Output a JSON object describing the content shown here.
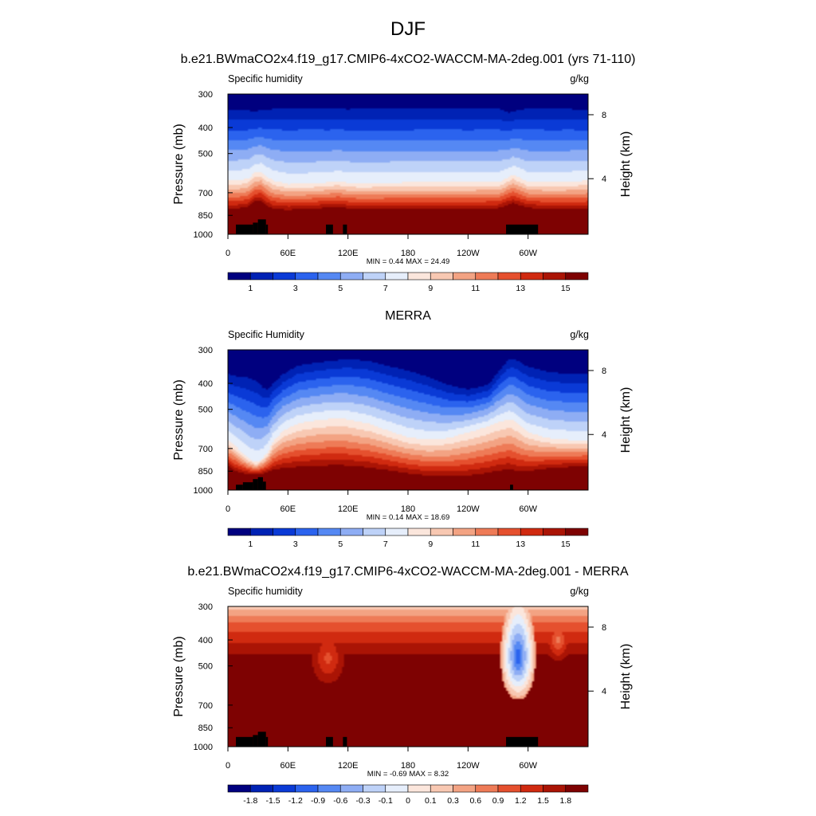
{
  "title": "DJF",
  "palette": {
    "moisture": [
      "#00007f",
      "#0022b4",
      "#0a3ad6",
      "#2b63ee",
      "#5588f3",
      "#8eadf4",
      "#bed2f8",
      "#e6eefb",
      "#fbe6dc",
      "#f8c8b2",
      "#f3a383",
      "#ee7b57",
      "#e5502e",
      "#d02a10",
      "#aa1405",
      "#7e0202"
    ],
    "diff": [
      "#00007f",
      "#0022b4",
      "#0a3ad6",
      "#2b63ee",
      "#5588f3",
      "#8eadf4",
      "#bed2f8",
      "#e6eefb",
      "#fbe6dc",
      "#f8c8b2",
      "#f3a383",
      "#ee7b57",
      "#e5502e",
      "#d02a10",
      "#aa1405",
      "#7e0202"
    ],
    "terrain": "#000000"
  },
  "panels": [
    {
      "header": "b.e21.BWmaCO2x4.f19_g17.CMIP6-4xCO2-WACCM-MA-2deg.001 (yrs 71-110)",
      "left_label": "Specific humidity",
      "right_label": "g/kg",
      "ylabel": "Pressure (mb)",
      "y2label": "Height (km)",
      "stats": "MIN =   0.44  MAX =  24.49",
      "colorbar_labels": [
        "1",
        "3",
        "5",
        "7",
        "9",
        "11",
        "13",
        "15"
      ]
    },
    {
      "header": "MERRA",
      "left_label": "Specific Humidity",
      "right_label": "g/kg",
      "ylabel": "Pressure (mb)",
      "y2label": "Height (km)",
      "stats": "MIN =   0.14  MAX =  18.69",
      "colorbar_labels": [
        "1",
        "3",
        "5",
        "7",
        "9",
        "11",
        "13",
        "15"
      ]
    },
    {
      "header": "b.e21.BWmaCO2x4.f19_g17.CMIP6-4xCO2-WACCM-MA-2deg.001 - MERRA",
      "left_label": "Specific humidity",
      "right_label": "g/kg",
      "ylabel": "Pressure (mb)",
      "y2label": "Height (km)",
      "stats": "MIN =  -0.69  MAX =   8.32",
      "colorbar_labels": [
        "-1.8",
        "-1.5",
        "-1.2",
        "-0.9",
        "-0.6",
        "-0.3",
        "-0.1",
        "0",
        "0.1",
        "0.3",
        "0.6",
        "0.9",
        "1.2",
        "1.5",
        "1.8"
      ]
    }
  ],
  "chart_data": [
    {
      "type": "heatmap",
      "title": "b.e21.BWmaCO2x4.f19_g17.CMIP6-4xCO2-WACCM-MA-2deg.001 (yrs 71-110)",
      "variable": "Specific humidity",
      "units": "g/kg",
      "ylabel": "Pressure (mb)",
      "y2label": "Height (km)",
      "x_ticks": [
        "0",
        "60E",
        "120E",
        "180",
        "120W",
        "60W"
      ],
      "y_ticks": [
        "300",
        "400",
        "500",
        "700",
        "850",
        "1000"
      ],
      "y2_ticks": [
        "8",
        "4"
      ],
      "ylim": [
        1000,
        300
      ],
      "xlim": [
        0,
        360
      ],
      "min": 0.44,
      "max": 24.49,
      "levels": [
        1,
        3,
        5,
        7,
        9,
        11,
        13,
        15
      ],
      "profile": {
        "lon": [
          0,
          10,
          20,
          27,
          33,
          38,
          45,
          60,
          80,
          100,
          110,
          120,
          130,
          150,
          180,
          210,
          240,
          270,
          280,
          285,
          290,
          300,
          320,
          340,
          360
        ],
        "p_top": [
          315,
          315,
          318,
          322,
          320,
          318,
          312,
          310,
          308,
          312,
          310,
          313,
          310,
          312,
          312,
          310,
          312,
          310,
          325,
          322,
          318,
          310,
          312,
          312,
          315
        ],
        "p_mid": [
          630,
          630,
          620,
          590,
          585,
          605,
          630,
          650,
          648,
          640,
          635,
          642,
          646,
          645,
          640,
          640,
          640,
          640,
          615,
          600,
          612,
          640,
          640,
          638,
          630
        ],
        "p_low": [
          810,
          806,
          795,
          760,
          755,
          785,
          808,
          815,
          808,
          800,
          795,
          805,
          808,
          808,
          808,
          808,
          808,
          805,
          780,
          770,
          780,
          800,
          810,
          812,
          810
        ]
      },
      "terrain": [
        [
          8,
          25,
          920
        ],
        [
          25,
          30,
          905
        ],
        [
          30,
          38,
          880
        ],
        [
          38,
          40,
          920
        ],
        [
          98,
          105,
          920
        ],
        [
          115,
          119,
          920
        ],
        [
          278,
          310,
          920
        ]
      ]
    },
    {
      "type": "heatmap",
      "title": "MERRA",
      "variable": "Specific Humidity",
      "units": "g/kg",
      "ylabel": "Pressure (mb)",
      "y2label": "Height (km)",
      "x_ticks": [
        "0",
        "60E",
        "120E",
        "180",
        "120W",
        "60W"
      ],
      "y_ticks": [
        "300",
        "400",
        "500",
        "700",
        "850",
        "1000"
      ],
      "y2_ticks": [
        "8",
        "4"
      ],
      "ylim": [
        1000,
        300
      ],
      "xlim": [
        0,
        360
      ],
      "min": 0.14,
      "max": 18.69,
      "levels": [
        1,
        3,
        5,
        7,
        9,
        11,
        13,
        15
      ],
      "profile": {
        "lon": [
          0,
          10,
          20,
          28,
          35,
          40,
          45,
          55,
          70,
          90,
          110,
          120,
          140,
          160,
          180,
          200,
          220,
          240,
          260,
          270,
          280,
          285,
          290,
          300,
          320,
          340,
          360
        ],
        "p_top": [
          340,
          345,
          345,
          355,
          380,
          390,
          372,
          345,
          320,
          312,
          305,
          302,
          305,
          318,
          330,
          350,
          380,
          400,
          385,
          340,
          305,
          300,
          305,
          320,
          335,
          340,
          340
        ],
        "p_mid": [
          650,
          700,
          760,
          790,
          760,
          720,
          660,
          600,
          565,
          548,
          540,
          545,
          565,
          600,
          635,
          650,
          640,
          610,
          580,
          560,
          545,
          550,
          570,
          610,
          640,
          650,
          650
        ],
        "p_low": [
          820,
          860,
          875,
          880,
          870,
          860,
          845,
          835,
          826,
          818,
          815,
          818,
          830,
          850,
          872,
          890,
          895,
          890,
          870,
          855,
          845,
          850,
          860,
          855,
          835,
          825,
          820
        ]
      },
      "terrain": [
        [
          8,
          15,
          955
        ],
        [
          15,
          25,
          935
        ],
        [
          25,
          30,
          910
        ],
        [
          30,
          35,
          895
        ],
        [
          35,
          38,
          930
        ],
        [
          282,
          285,
          955
        ]
      ]
    },
    {
      "type": "heatmap",
      "title": "b.e21.BWmaCO2x4.f19_g17.CMIP6-4xCO2-WACCM-MA-2deg.001 - MERRA",
      "variable": "Specific humidity",
      "units": "g/kg",
      "ylabel": "Pressure (mb)",
      "y2label": "Height (km)",
      "x_ticks": [
        "0",
        "60E",
        "120E",
        "180",
        "120W",
        "60W"
      ],
      "y_ticks": [
        "300",
        "400",
        "500",
        "700",
        "850",
        "1000"
      ],
      "y2_ticks": [
        "8",
        "4"
      ],
      "ylim": [
        1000,
        300
      ],
      "xlim": [
        0,
        360
      ],
      "min": -0.69,
      "max": 8.32,
      "levels": [
        -1.8,
        -1.5,
        -1.2,
        -0.9,
        -0.6,
        -0.3,
        -0.1,
        0,
        0.1,
        0.3,
        0.6,
        0.9,
        1.2,
        1.5,
        1.8
      ],
      "dry_anomaly_center": {
        "lon": 290,
        "p": 460
      },
      "terrain": [
        [
          8,
          25,
          920
        ],
        [
          25,
          30,
          905
        ],
        [
          30,
          38,
          880
        ],
        [
          38,
          40,
          920
        ],
        [
          98,
          105,
          920
        ],
        [
          115,
          119,
          920
        ],
        [
          278,
          310,
          920
        ]
      ]
    }
  ]
}
